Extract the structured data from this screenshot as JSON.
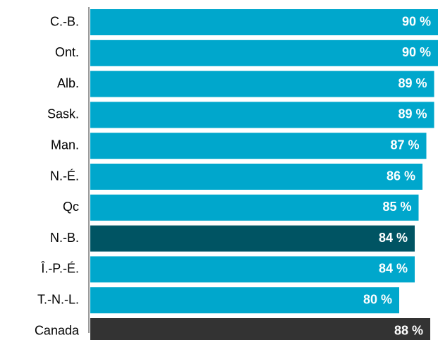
{
  "chart_data": {
    "type": "bar",
    "orientation": "horizontal",
    "categories": [
      "C.-B.",
      "Ont.",
      "Alb.",
      "Sask.",
      "Man.",
      "N.-É.",
      "Qc",
      "N.-B.",
      "Î.-P.-É.",
      "T.-N.-L.",
      "Canada"
    ],
    "values": [
      90,
      90,
      89,
      89,
      87,
      86,
      85,
      84,
      84,
      80,
      88
    ],
    "value_labels": [
      "90 %",
      "90 %",
      "89 %",
      "89 %",
      "87 %",
      "86 %",
      "85 %",
      "84 %",
      "84 %",
      "80 %",
      "88 %"
    ],
    "colors": [
      "#00a7cc",
      "#00a7cc",
      "#00a7cc",
      "#00a7cc",
      "#00a7cc",
      "#00a7cc",
      "#00a7cc",
      "#005463",
      "#00a7cc",
      "#00a7cc",
      "#333333"
    ],
    "xlim": [
      0,
      90
    ]
  }
}
